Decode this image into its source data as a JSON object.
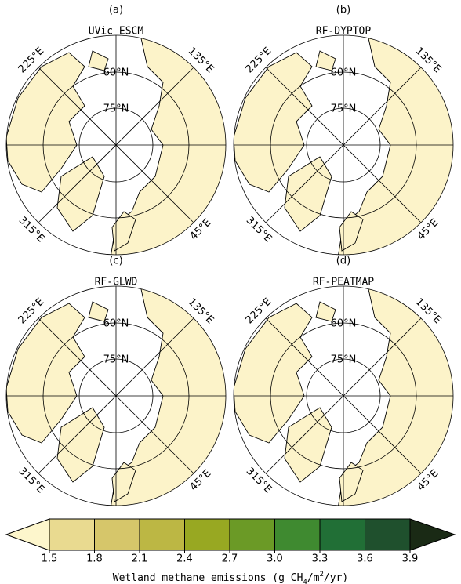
{
  "panels": [
    {
      "label": "(a)",
      "title": "UVic ESCM"
    },
    {
      "label": "(b)",
      "title": "RF-DYPTOP"
    },
    {
      "label": "(c)",
      "title": "RF-GLWD"
    },
    {
      "label": "(d)",
      "title": "RF-PEATMAP"
    }
  ],
  "grid_labels": {
    "lat": [
      "60°N",
      "75°N"
    ],
    "lon": [
      "225°E",
      "135°E",
      "315°E",
      "45°E"
    ]
  },
  "colorbar": {
    "ticks": [
      1.5,
      1.8,
      2.1,
      2.4,
      2.7,
      {
        "value": 3,
        "label": "3.0"
      },
      3.3,
      3.6,
      3.9
    ],
    "colors": [
      "#fdf6cc",
      "#e9da90",
      "#d6c66a",
      "#bcb744",
      "#98a822",
      "#6b9a26",
      "#3f8a30",
      "#216f36",
      "#1f502d",
      "#1a2a15"
    ],
    "label": [
      "Wetland methane emissions (g CH",
      "4",
      "/m",
      "2",
      "/yr)"
    ]
  }
}
